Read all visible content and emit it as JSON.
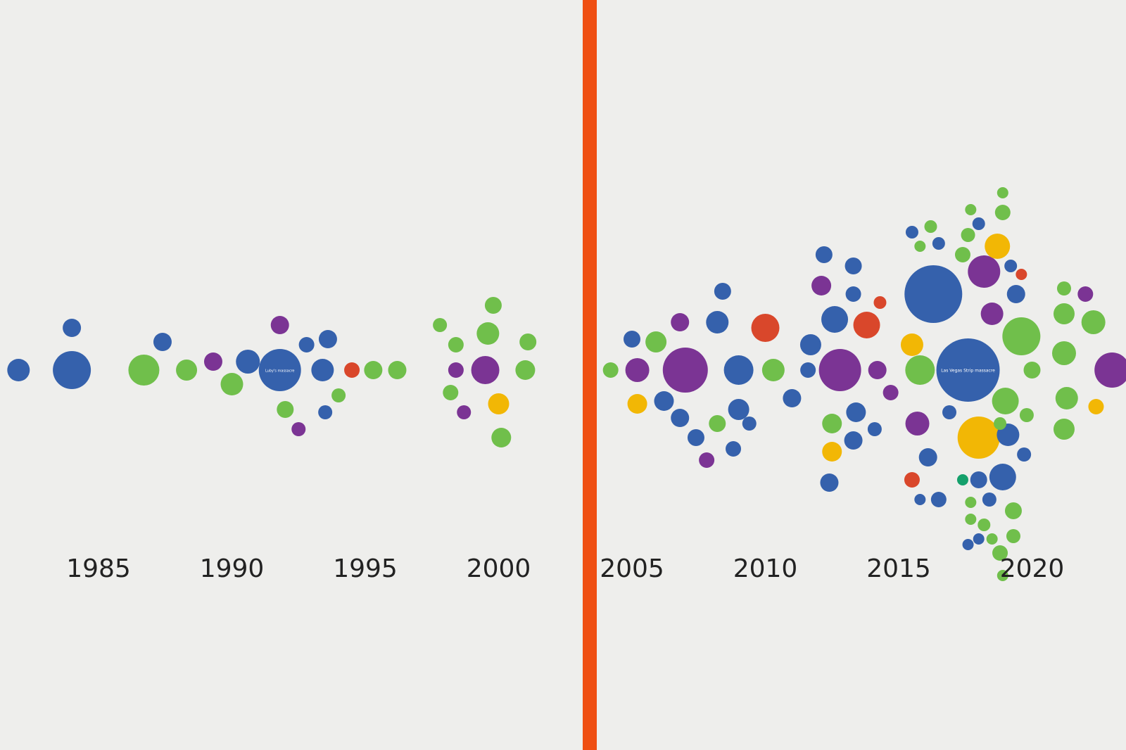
{
  "colors": {
    "background": "#eeeeec",
    "divider": "#ef4f13",
    "blue": "#3561ac",
    "green": "#70bf4b",
    "purple": "#7b3494",
    "red": "#d9472b",
    "yellow": "#f2b705",
    "teal": "#14a06b",
    "tick": "#222222"
  },
  "chart_data": {
    "type": "scatter",
    "title": "",
    "xlabel": "",
    "ylabel": "",
    "x_ticks": [
      1985,
      1990,
      1995,
      2000,
      2005,
      2010,
      2015,
      2020
    ],
    "xlim": [
      1981,
      2023.5
    ],
    "break_between": [
      2002,
      2004
    ],
    "grid": false,
    "legend": "none",
    "bubbles": [
      {
        "year": 1982.0,
        "offset": 0,
        "size": 16,
        "color": "blue"
      },
      {
        "year": 1984.0,
        "offset": 1.5,
        "size": 13,
        "color": "blue"
      },
      {
        "year": 1984.0,
        "offset": 0,
        "size": 27,
        "color": "blue"
      },
      {
        "year": 1986.7,
        "offset": 0,
        "size": 22,
        "color": "green"
      },
      {
        "year": 1987.4,
        "offset": 1,
        "size": 13,
        "color": "blue"
      },
      {
        "year": 1988.3,
        "offset": 0,
        "size": 15,
        "color": "green"
      },
      {
        "year": 1989.3,
        "offset": 0.3,
        "size": 13,
        "color": "purple"
      },
      {
        "year": 1990.0,
        "offset": -0.5,
        "size": 16,
        "color": "green"
      },
      {
        "year": 1990.6,
        "offset": 0.3,
        "size": 17,
        "color": "blue"
      },
      {
        "year": 1991.8,
        "offset": 0,
        "size": 30,
        "color": "blue",
        "label": "Luby's massacre"
      },
      {
        "year": 1991.8,
        "offset": 1.6,
        "size": 13,
        "color": "purple"
      },
      {
        "year": 1992.0,
        "offset": -1.4,
        "size": 12,
        "color": "green"
      },
      {
        "year": 1992.5,
        "offset": -2.1,
        "size": 10,
        "color": "purple"
      },
      {
        "year": 1992.8,
        "offset": 0.9,
        "size": 11,
        "color": "blue"
      },
      {
        "year": 1993.6,
        "offset": 1.1,
        "size": 13,
        "color": "blue"
      },
      {
        "year": 1993.4,
        "offset": 0,
        "size": 16,
        "color": "blue"
      },
      {
        "year": 1994.0,
        "offset": -0.9,
        "size": 10,
        "color": "green"
      },
      {
        "year": 1993.5,
        "offset": -1.5,
        "size": 10,
        "color": "blue"
      },
      {
        "year": 1994.5,
        "offset": 0,
        "size": 11,
        "color": "red"
      },
      {
        "year": 1995.3,
        "offset": 0,
        "size": 13,
        "color": "green"
      },
      {
        "year": 1996.2,
        "offset": 0,
        "size": 13,
        "color": "green"
      },
      {
        "year": 1997.8,
        "offset": 1.6,
        "size": 10,
        "color": "green"
      },
      {
        "year": 1998.4,
        "offset": 0.9,
        "size": 11,
        "color": "green"
      },
      {
        "year": 1998.4,
        "offset": 0,
        "size": 11,
        "color": "purple"
      },
      {
        "year": 1998.2,
        "offset": -0.8,
        "size": 11,
        "color": "green"
      },
      {
        "year": 1998.7,
        "offset": -1.5,
        "size": 10,
        "color": "purple"
      },
      {
        "year": 1999.8,
        "offset": 2.3,
        "size": 12,
        "color": "green"
      },
      {
        "year": 1999.6,
        "offset": 1.3,
        "size": 16,
        "color": "green"
      },
      {
        "year": 1999.5,
        "offset": 0,
        "size": 20,
        "color": "purple"
      },
      {
        "year": 2000.0,
        "offset": -1.2,
        "size": 15,
        "color": "yellow"
      },
      {
        "year": 2000.1,
        "offset": -2.4,
        "size": 14,
        "color": "green"
      },
      {
        "year": 2001.1,
        "offset": 1.0,
        "size": 12,
        "color": "green"
      },
      {
        "year": 2001.0,
        "offset": 0,
        "size": 14,
        "color": "green"
      },
      {
        "year": 2004.2,
        "offset": 0,
        "size": 11,
        "color": "green"
      },
      {
        "year": 2005.0,
        "offset": 1.1,
        "size": 12,
        "color": "blue"
      },
      {
        "year": 2005.9,
        "offset": 1.0,
        "size": 15,
        "color": "green"
      },
      {
        "year": 2005.2,
        "offset": 0,
        "size": 17,
        "color": "purple"
      },
      {
        "year": 2005.2,
        "offset": -1.2,
        "size": 14,
        "color": "yellow"
      },
      {
        "year": 2006.2,
        "offset": -1.1,
        "size": 14,
        "color": "blue"
      },
      {
        "year": 2006.8,
        "offset": 1.7,
        "size": 13,
        "color": "purple"
      },
      {
        "year": 2007.0,
        "offset": 0,
        "size": 32,
        "color": "purple"
      },
      {
        "year": 2006.8,
        "offset": -1.7,
        "size": 13,
        "color": "blue"
      },
      {
        "year": 2007.4,
        "offset": -2.4,
        "size": 12,
        "color": "blue"
      },
      {
        "year": 2007.8,
        "offset": -3.2,
        "size": 11,
        "color": "purple"
      },
      {
        "year": 2008.2,
        "offset": 1.7,
        "size": 16,
        "color": "blue"
      },
      {
        "year": 2008.4,
        "offset": 2.8,
        "size": 12,
        "color": "blue"
      },
      {
        "year": 2008.2,
        "offset": -1.9,
        "size": 12,
        "color": "green"
      },
      {
        "year": 2008.8,
        "offset": -2.8,
        "size": 11,
        "color": "blue"
      },
      {
        "year": 2009.0,
        "offset": 0,
        "size": 21,
        "color": "blue"
      },
      {
        "year": 2009.0,
        "offset": -1.4,
        "size": 15,
        "color": "blue"
      },
      {
        "year": 2010.0,
        "offset": 1.5,
        "size": 20,
        "color": "red"
      },
      {
        "year": 2009.4,
        "offset": -1.9,
        "size": 10,
        "color": "blue"
      },
      {
        "year": 2010.3,
        "offset": 0,
        "size": 16,
        "color": "green"
      },
      {
        "year": 2011.0,
        "offset": -1.0,
        "size": 13,
        "color": "blue"
      },
      {
        "year": 2011.7,
        "offset": 0.9,
        "size": 15,
        "color": "blue"
      },
      {
        "year": 2011.6,
        "offset": 0,
        "size": 11,
        "color": "blue"
      },
      {
        "year": 2012.2,
        "offset": 4.1,
        "size": 12,
        "color": "blue"
      },
      {
        "year": 2012.1,
        "offset": 3.0,
        "size": 14,
        "color": "purple"
      },
      {
        "year": 2012.6,
        "offset": 1.8,
        "size": 19,
        "color": "blue"
      },
      {
        "year": 2012.8,
        "offset": 0,
        "size": 30,
        "color": "purple"
      },
      {
        "year": 2012.5,
        "offset": -1.9,
        "size": 14,
        "color": "green"
      },
      {
        "year": 2012.5,
        "offset": -2.9,
        "size": 14,
        "color": "yellow"
      },
      {
        "year": 2012.4,
        "offset": -4.0,
        "size": 13,
        "color": "blue"
      },
      {
        "year": 2013.3,
        "offset": 3.7,
        "size": 12,
        "color": "blue"
      },
      {
        "year": 2013.3,
        "offset": 2.7,
        "size": 11,
        "color": "blue"
      },
      {
        "year": 2013.8,
        "offset": 1.6,
        "size": 19,
        "color": "red"
      },
      {
        "year": 2014.3,
        "offset": 2.4,
        "size": 9,
        "color": "red"
      },
      {
        "year": 2013.4,
        "offset": -1.5,
        "size": 14,
        "color": "blue"
      },
      {
        "year": 2013.3,
        "offset": -2.5,
        "size": 13,
        "color": "blue"
      },
      {
        "year": 2014.2,
        "offset": 0,
        "size": 13,
        "color": "purple"
      },
      {
        "year": 2014.1,
        "offset": -2.1,
        "size": 10,
        "color": "blue"
      },
      {
        "year": 2014.7,
        "offset": -0.8,
        "size": 11,
        "color": "purple"
      },
      {
        "year": 2015.5,
        "offset": 0.9,
        "size": 16,
        "color": "yellow"
      },
      {
        "year": 2015.5,
        "offset": 4.9,
        "size": 9,
        "color": "blue"
      },
      {
        "year": 2016.2,
        "offset": 5.1,
        "size": 9,
        "color": "green"
      },
      {
        "year": 2016.5,
        "offset": 4.5,
        "size": 9,
        "color": "blue"
      },
      {
        "year": 2015.8,
        "offset": 4.4,
        "size": 8,
        "color": "green"
      },
      {
        "year": 2016.3,
        "offset": 2.7,
        "size": 41,
        "color": "blue"
      },
      {
        "year": 2015.8,
        "offset": 0,
        "size": 21,
        "color": "green"
      },
      {
        "year": 2015.7,
        "offset": -1.9,
        "size": 17,
        "color": "purple"
      },
      {
        "year": 2016.1,
        "offset": -3.1,
        "size": 13,
        "color": "blue"
      },
      {
        "year": 2015.5,
        "offset": -3.9,
        "size": 11,
        "color": "red"
      },
      {
        "year": 2015.8,
        "offset": -4.6,
        "size": 8,
        "color": "blue"
      },
      {
        "year": 2016.5,
        "offset": -4.6,
        "size": 11,
        "color": "blue"
      },
      {
        "year": 2016.9,
        "offset": -1.5,
        "size": 10,
        "color": "blue"
      },
      {
        "year": 2017.6,
        "offset": 0,
        "size": 45,
        "color": "blue",
        "label": "Las Vegas Strip massacre"
      },
      {
        "year": 2017.7,
        "offset": 5.7,
        "size": 8,
        "color": "green"
      },
      {
        "year": 2018.0,
        "offset": 5.2,
        "size": 9,
        "color": "blue"
      },
      {
        "year": 2017.6,
        "offset": 4.8,
        "size": 10,
        "color": "green"
      },
      {
        "year": 2018.2,
        "offset": 3.5,
        "size": 23,
        "color": "purple"
      },
      {
        "year": 2018.7,
        "offset": 4.4,
        "size": 18,
        "color": "yellow"
      },
      {
        "year": 2017.4,
        "offset": 4.1,
        "size": 11,
        "color": "green"
      },
      {
        "year": 2018.9,
        "offset": 6.3,
        "size": 8,
        "color": "green"
      },
      {
        "year": 2018.9,
        "offset": 5.6,
        "size": 11,
        "color": "green"
      },
      {
        "year": 2018.5,
        "offset": 2.0,
        "size": 16,
        "color": "purple"
      },
      {
        "year": 2019.2,
        "offset": 3.7,
        "size": 9,
        "color": "blue"
      },
      {
        "year": 2019.6,
        "offset": 3.4,
        "size": 8,
        "color": "red"
      },
      {
        "year": 2018.0,
        "offset": -2.4,
        "size": 30,
        "color": "yellow"
      },
      {
        "year": 2017.4,
        "offset": -3.9,
        "size": 8,
        "color": "teal"
      },
      {
        "year": 2018.0,
        "offset": -3.9,
        "size": 12,
        "color": "blue"
      },
      {
        "year": 2018.9,
        "offset": -3.8,
        "size": 19,
        "color": "blue"
      },
      {
        "year": 2018.4,
        "offset": -4.6,
        "size": 10,
        "color": "blue"
      },
      {
        "year": 2017.7,
        "offset": -4.7,
        "size": 8,
        "color": "green"
      },
      {
        "year": 2019.3,
        "offset": -5.0,
        "size": 12,
        "color": "green"
      },
      {
        "year": 2017.7,
        "offset": -5.3,
        "size": 8,
        "color": "green"
      },
      {
        "year": 2018.2,
        "offset": -5.5,
        "size": 9,
        "color": "green"
      },
      {
        "year": 2019.3,
        "offset": -5.9,
        "size": 10,
        "color": "green"
      },
      {
        "year": 2017.6,
        "offset": -6.2,
        "size": 8,
        "color": "blue"
      },
      {
        "year": 2018.0,
        "offset": -6.0,
        "size": 8,
        "color": "blue"
      },
      {
        "year": 2018.5,
        "offset": -6.0,
        "size": 8,
        "color": "green"
      },
      {
        "year": 2018.8,
        "offset": -6.5,
        "size": 11,
        "color": "green"
      },
      {
        "year": 2018.9,
        "offset": -7.3,
        "size": 8,
        "color": "green"
      },
      {
        "year": 2019.4,
        "offset": 2.7,
        "size": 13,
        "color": "blue"
      },
      {
        "year": 2019.6,
        "offset": 1.2,
        "size": 27,
        "color": "green"
      },
      {
        "year": 2019.0,
        "offset": -1.1,
        "size": 19,
        "color": "green"
      },
      {
        "year": 2019.1,
        "offset": -2.3,
        "size": 16,
        "color": "blue"
      },
      {
        "year": 2019.7,
        "offset": -3.0,
        "size": 10,
        "color": "blue"
      },
      {
        "year": 2019.8,
        "offset": -1.6,
        "size": 10,
        "color": "green"
      },
      {
        "year": 2020.0,
        "offset": 0,
        "size": 12,
        "color": "green"
      },
      {
        "year": 2018.8,
        "offset": -1.9,
        "size": 9,
        "color": "green"
      },
      {
        "year": 2021.2,
        "offset": 2.9,
        "size": 10,
        "color": "green"
      },
      {
        "year": 2021.2,
        "offset": 2.0,
        "size": 15,
        "color": "green"
      },
      {
        "year": 2021.2,
        "offset": 0.6,
        "size": 17,
        "color": "green"
      },
      {
        "year": 2021.3,
        "offset": -1.0,
        "size": 16,
        "color": "green"
      },
      {
        "year": 2021.2,
        "offset": -2.1,
        "size": 15,
        "color": "green"
      },
      {
        "year": 2022.3,
        "offset": 1.7,
        "size": 17,
        "color": "green"
      },
      {
        "year": 2022.0,
        "offset": 2.7,
        "size": 11,
        "color": "purple"
      },
      {
        "year": 2023.0,
        "offset": 0,
        "size": 25,
        "color": "purple"
      },
      {
        "year": 2022.4,
        "offset": -1.3,
        "size": 11,
        "color": "yellow"
      }
    ]
  }
}
